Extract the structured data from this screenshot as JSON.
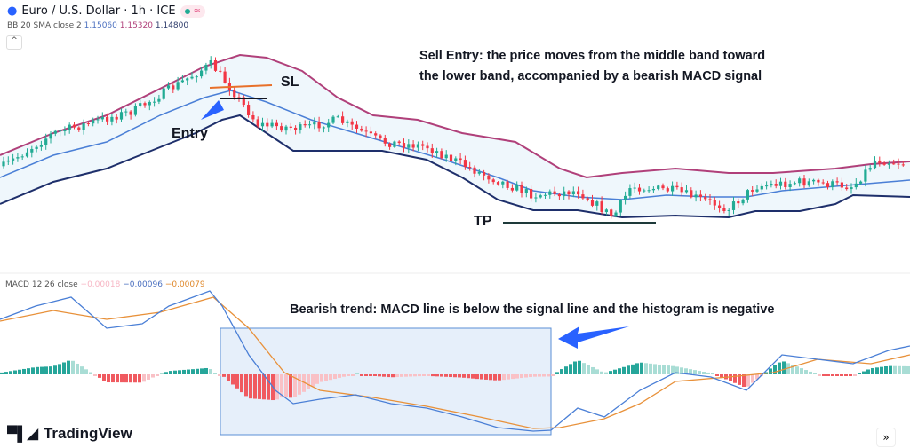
{
  "header": {
    "title": "Euro / U.S. Dollar · 1h · ICE",
    "status_icon": "market-open-dot",
    "extra_icon": "≈"
  },
  "bb": {
    "label": "BB 20 SMA close 2",
    "middle": "1.15060",
    "upper": "1.15320",
    "lower": "1.14800"
  },
  "macd": {
    "label": "MACD 12 26 close",
    "hist": "−0.00018",
    "macd": "−0.00096",
    "signal": "−0.00079"
  },
  "annotations": {
    "sell_line1": "Sell Entry:  the price moves from the middle band toward",
    "sell_line2": "the lower band, accompanied by a bearish MACD signal",
    "bear": "Bearish trend:  MACD line is below the signal line and the histogram is negative",
    "sl": "SL",
    "entry": "Entry",
    "tp": "TP"
  },
  "colors": {
    "up": "#22ab94",
    "down": "#f23645",
    "upper_band": "#b0407a",
    "middle_band": "#4a7fd6",
    "lower_band": "#1e2f6b",
    "macd_line": "#4a7fd6",
    "signal_line": "#e8913a",
    "highlight": "#2962ff"
  },
  "brand": "TradingView",
  "controls": {
    "collapse": "^",
    "scroll_forward": "»"
  }
}
